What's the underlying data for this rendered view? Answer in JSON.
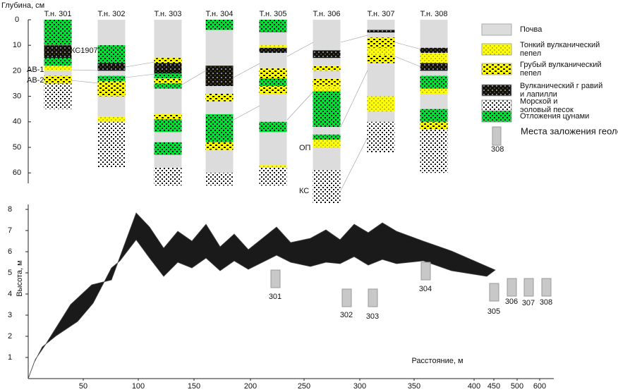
{
  "top": {
    "y_label": "Глубина, см",
    "depth_ticks": [
      0,
      10,
      20,
      30,
      40,
      50,
      60
    ],
    "columns": [
      {
        "name": "Т.н. 301",
        "layers": [
          [
            5,
            0,
            10
          ],
          [
            3,
            10,
            15
          ],
          [
            5,
            15,
            18
          ],
          [
            1,
            18,
            20
          ],
          [
            0,
            20,
            22
          ],
          [
            2,
            22,
            25
          ],
          [
            4,
            25,
            35
          ]
        ]
      },
      {
        "name": "Т.н. 302",
        "layers": [
          [
            0,
            0,
            10
          ],
          [
            5,
            10,
            17
          ],
          [
            3,
            17,
            20
          ],
          [
            0,
            20,
            22
          ],
          [
            5,
            22,
            24
          ],
          [
            2,
            24,
            30
          ],
          [
            0,
            30,
            38
          ],
          [
            1,
            38,
            40
          ],
          [
            4,
            40,
            58
          ]
        ]
      },
      {
        "name": "Т.н. 303",
        "layers": [
          [
            0,
            0,
            15
          ],
          [
            2,
            15,
            17
          ],
          [
            3,
            17,
            21
          ],
          [
            5,
            21,
            23
          ],
          [
            2,
            23,
            25
          ],
          [
            5,
            25,
            27
          ],
          [
            0,
            27,
            37
          ],
          [
            2,
            37,
            39
          ],
          [
            5,
            39,
            44
          ],
          [
            0,
            44,
            48
          ],
          [
            5,
            48,
            53
          ],
          [
            0,
            53,
            58
          ],
          [
            4,
            58,
            65
          ]
        ]
      },
      {
        "name": "Т.н. 304",
        "layers": [
          [
            5,
            0,
            4
          ],
          [
            0,
            4,
            18
          ],
          [
            3,
            18,
            26
          ],
          [
            0,
            26,
            29
          ],
          [
            2,
            29,
            32
          ],
          [
            0,
            32,
            37
          ],
          [
            5,
            37,
            48
          ],
          [
            2,
            48,
            51
          ],
          [
            0,
            51,
            60
          ],
          [
            4,
            60,
            65
          ]
        ]
      },
      {
        "name": "Т.н. 305",
        "layers": [
          [
            5,
            0,
            5
          ],
          [
            0,
            5,
            10
          ],
          [
            1,
            10,
            11
          ],
          [
            3,
            11,
            13
          ],
          [
            0,
            13,
            19
          ],
          [
            2,
            19,
            23
          ],
          [
            5,
            23,
            26
          ],
          [
            2,
            26,
            29
          ],
          [
            0,
            29,
            40
          ],
          [
            5,
            40,
            44
          ],
          [
            0,
            44,
            57
          ],
          [
            1,
            57,
            58
          ],
          [
            4,
            58,
            65
          ]
        ]
      },
      {
        "name": "Т.н. 306",
        "layers": [
          [
            0,
            0,
            12
          ],
          [
            3,
            12,
            15
          ],
          [
            0,
            15,
            18
          ],
          [
            2,
            18,
            20
          ],
          [
            0,
            20,
            23
          ],
          [
            2,
            23,
            26
          ],
          [
            1,
            26,
            28
          ],
          [
            5,
            28,
            42
          ],
          [
            0,
            42,
            45
          ],
          [
            5,
            45,
            47
          ],
          [
            1,
            47,
            50
          ],
          [
            0,
            50,
            59
          ],
          [
            4,
            59,
            72
          ]
        ]
      },
      {
        "name": "Т.н. 307",
        "layers": [
          [
            0,
            0,
            4
          ],
          [
            3,
            4,
            5
          ],
          [
            0,
            5,
            7
          ],
          [
            2,
            7,
            11
          ],
          [
            1,
            11,
            14
          ],
          [
            2,
            14,
            17
          ],
          [
            0,
            17,
            30
          ],
          [
            1,
            30,
            36
          ],
          [
            0,
            36,
            40
          ],
          [
            4,
            40,
            52
          ]
        ]
      },
      {
        "name": "Т.н. 308",
        "layers": [
          [
            0,
            0,
            11
          ],
          [
            3,
            11,
            13
          ],
          [
            1,
            13,
            17
          ],
          [
            3,
            17,
            20
          ],
          [
            0,
            20,
            22
          ],
          [
            5,
            22,
            27
          ],
          [
            1,
            27,
            29
          ],
          [
            0,
            29,
            35
          ],
          [
            5,
            35,
            40
          ],
          [
            2,
            40,
            43
          ],
          [
            4,
            43,
            60
          ]
        ]
      }
    ],
    "annotations": [
      "КС1907",
      "АВ-1",
      "АВ-2",
      "ОП",
      "КС"
    ]
  },
  "legend": {
    "items": [
      "Почва",
      "Тонкий вулканический пепел",
      "Грубый вулканический пепел",
      "Вулканический г равий и лапилли",
      "Морской и эоловый песок",
      "Отложения цунами"
    ],
    "pit_label": "Места заложения геологических шурфов",
    "pit_example": "308"
  },
  "bottom": {
    "y_label": "Высота, м",
    "x_label": "Расстояние, м",
    "height_ticks": [
      1,
      2,
      3,
      4,
      5,
      6,
      7,
      8
    ],
    "distance_ticks": [
      50,
      100,
      150,
      200,
      250,
      300,
      350,
      400,
      450,
      500,
      600
    ],
    "pits": [
      "301",
      "302",
      "303",
      "304",
      "305",
      "306",
      "307",
      "308"
    ]
  }
}
